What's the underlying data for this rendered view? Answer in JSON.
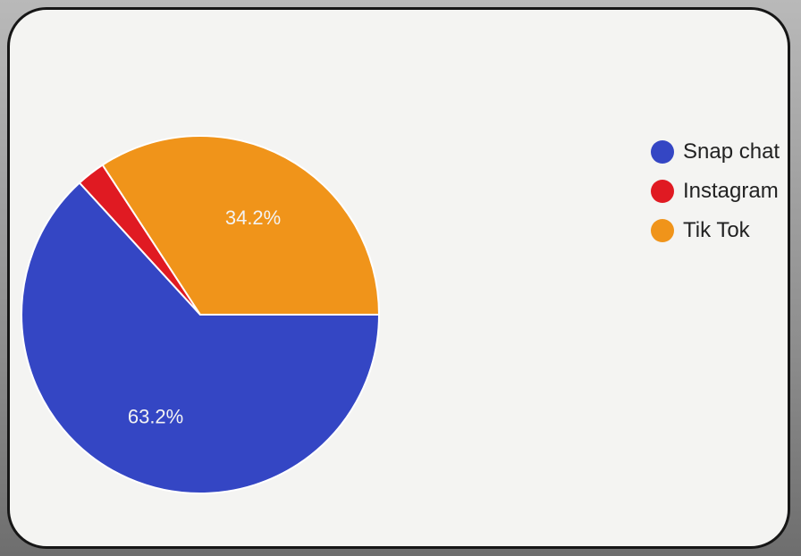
{
  "chart_data": {
    "type": "pie",
    "categories": [
      "Snap chat",
      "Instagram",
      "Tik Tok"
    ],
    "values": [
      63.2,
      2.6,
      34.2
    ],
    "data_labels": [
      "63.2%",
      "",
      "34.2%"
    ],
    "colors": [
      "#3446c4",
      "#e01a22",
      "#f0941a"
    ],
    "legend_position": "right",
    "start_angle_deg": 0,
    "direction": "clockwise"
  }
}
